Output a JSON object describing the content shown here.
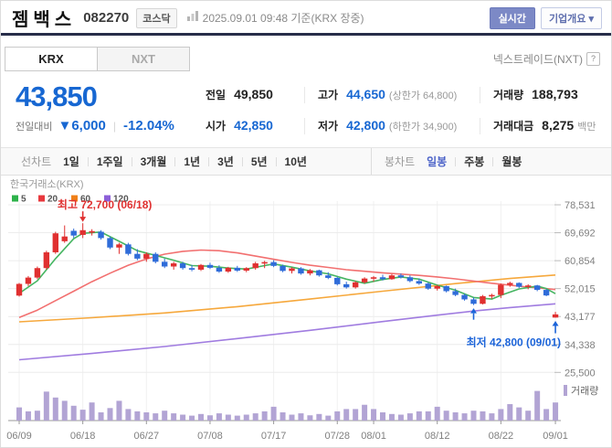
{
  "header": {
    "title": "젬백스",
    "code": "082270",
    "market_badge": "코스닥",
    "datetime": "2025.09.01 09:48 기준(KRX 장중)",
    "realtime_button": "실시간",
    "overview_button": "기업개요 ▾"
  },
  "tabs": {
    "krx": "KRX",
    "nxt": "NXT",
    "nxt_link": "넥스트레이드(NXT)",
    "help_icon": "?"
  },
  "quote": {
    "price": "43,850",
    "change_label": "전일대비",
    "change_value": "▼6,000",
    "change_percent": "-12.04%",
    "fields": [
      {
        "label": "전일",
        "value": "49,850",
        "extra": ""
      },
      {
        "label": "고가",
        "value": "44,650",
        "extra": "(상한가 64,800)"
      },
      {
        "label": "거래량",
        "value": "188,793",
        "extra": ""
      },
      {
        "label": "시가",
        "value": "42,850",
        "extra": ""
      },
      {
        "label": "저가",
        "value": "42,800",
        "extra": "(하한가 34,900)"
      },
      {
        "label": "거래대금",
        "value": "8,275",
        "extra": "백만"
      }
    ]
  },
  "controls": {
    "line_label": "선차트",
    "line_items": [
      "1일",
      "1주일",
      "3개월",
      "1년",
      "3년",
      "5년",
      "10년"
    ],
    "candle_label": "봉차트",
    "candle_items": [
      "일봉",
      "주봉",
      "월봉"
    ],
    "candle_selected": "일봉"
  },
  "chart_data": {
    "type": "candlestick",
    "source_label": "한국거래소(KRX)",
    "volume_label": "거래량",
    "legend": [
      {
        "label": "5",
        "swatch": "#2db24a",
        "line": "#45b561"
      },
      {
        "label": "20",
        "swatch": "#e8383d",
        "line": "#f27070"
      },
      {
        "label": "60",
        "swatch": "#f08018",
        "line": "#f6a83c"
      },
      {
        "label": "120",
        "swatch": "#8c5fd8",
        "line": "#a07ce0"
      }
    ],
    "colors": {
      "up": "#e03030",
      "down": "#2f6cd9",
      "volume": "#b2a4d4",
      "grid": "#ececec",
      "vgrid": "#f0f0f0",
      "axis_text": "#7f7f7f"
    },
    "y_ticks": [
      78531,
      69692,
      60854,
      52015,
      43177,
      34338,
      25500
    ],
    "x_ticks": [
      {
        "label": "06/09",
        "index": 0
      },
      {
        "label": "06/18",
        "index": 7
      },
      {
        "label": "06/27",
        "index": 14
      },
      {
        "label": "07/08",
        "index": 21
      },
      {
        "label": "07/17",
        "index": 28
      },
      {
        "label": "07/28",
        "index": 35
      },
      {
        "label": "08/01",
        "index": 39
      },
      {
        "label": "08/12",
        "index": 46
      },
      {
        "label": "08/22",
        "index": 53
      },
      {
        "label": "09/01",
        "index": 59
      }
    ],
    "annotations": {
      "high": {
        "text": "최고 72,700 (06/18)",
        "index": 7,
        "price": 72700,
        "color": "#e03131"
      },
      "low": {
        "text": "최저 42,800 (09/01)",
        "index": 59,
        "price": 42800,
        "color": "#1c64d9"
      },
      "extra_up_arrow": {
        "index": 50,
        "price": 46800,
        "color": "#1c64d9"
      }
    },
    "candles": [
      [
        49800,
        53800,
        49500,
        53500
      ],
      [
        53500,
        56000,
        52800,
        55500
      ],
      [
        55500,
        59000,
        55000,
        58500
      ],
      [
        58500,
        64000,
        58000,
        63500
      ],
      [
        63500,
        70000,
        63000,
        69500
      ],
      [
        67000,
        72000,
        66500,
        68500
      ],
      [
        70300,
        71000,
        68000,
        68800
      ],
      [
        69000,
        72700,
        68000,
        70500
      ],
      [
        69800,
        70800,
        68800,
        70200
      ],
      [
        70000,
        70500,
        67500,
        68000
      ],
      [
        68000,
        68500,
        64500,
        65000
      ],
      [
        65000,
        66500,
        63000,
        66000
      ],
      [
        66000,
        66500,
        62500,
        63000
      ],
      [
        63000,
        64500,
        61000,
        61500
      ],
      [
        61500,
        63500,
        60500,
        63000
      ],
      [
        63000,
        63500,
        60000,
        60500
      ],
      [
        60500,
        61500,
        58500,
        59000
      ],
      [
        59000,
        60500,
        58000,
        60000
      ],
      [
        60000,
        60500,
        58000,
        58500
      ],
      [
        58500,
        59500,
        57500,
        58000
      ],
      [
        58000,
        59800,
        57600,
        59500
      ],
      [
        59500,
        60200,
        58200,
        58600
      ],
      [
        58600,
        59400,
        57000,
        57400
      ],
      [
        57400,
        58900,
        57000,
        58600
      ],
      [
        58600,
        59200,
        57300,
        57700
      ],
      [
        57700,
        58800,
        57200,
        58500
      ],
      [
        58500,
        60500,
        58000,
        60000
      ],
      [
        60000,
        60800,
        58500,
        60400
      ],
      [
        60400,
        61000,
        58800,
        59200
      ],
      [
        59200,
        59600,
        57200,
        57600
      ],
      [
        57600,
        58800,
        56800,
        58400
      ],
      [
        58400,
        58800,
        56400,
        56800
      ],
      [
        56800,
        58200,
        56200,
        57800
      ],
      [
        57800,
        58000,
        55800,
        56200
      ],
      [
        56200,
        57200,
        55000,
        55400
      ],
      [
        55400,
        55800,
        53000,
        53400
      ],
      [
        53400,
        54200,
        52000,
        52400
      ],
      [
        52400,
        54400,
        52000,
        54000
      ],
      [
        54000,
        55600,
        53600,
        55200
      ],
      [
        55200,
        56000,
        54200,
        55600
      ],
      [
        55600,
        56400,
        54600,
        55000
      ],
      [
        55000,
        56600,
        54800,
        56200
      ],
      [
        56200,
        56800,
        55200,
        55600
      ],
      [
        55600,
        56200,
        54000,
        54400
      ],
      [
        54400,
        55200,
        53200,
        53600
      ],
      [
        53600,
        54000,
        51600,
        52000
      ],
      [
        52000,
        53200,
        51400,
        52800
      ],
      [
        52800,
        53000,
        50800,
        51200
      ],
      [
        51200,
        52000,
        49600,
        50000
      ],
      [
        50000,
        50400,
        48200,
        48600
      ],
      [
        48600,
        49200,
        46800,
        47200
      ],
      [
        47200,
        50000,
        47000,
        49600
      ],
      [
        49600,
        50400,
        48800,
        50000
      ],
      [
        50000,
        53600,
        49000,
        53200
      ],
      [
        53200,
        54200,
        52600,
        53800
      ],
      [
        53800,
        54000,
        52200,
        52600
      ],
      [
        52600,
        53400,
        51800,
        53000
      ],
      [
        53000,
        53200,
        51200,
        51600
      ],
      [
        51600,
        51900,
        49600,
        49850
      ],
      [
        42850,
        44650,
        42800,
        43850
      ]
    ],
    "volumes": [
      40,
      28,
      30,
      88,
      70,
      60,
      45,
      33,
      55,
      25,
      38,
      60,
      35,
      28,
      25,
      22,
      30,
      22,
      18,
      15,
      20,
      16,
      22,
      18,
      15,
      18,
      22,
      28,
      42,
      25,
      18,
      22,
      16,
      20,
      15,
      28,
      35,
      35,
      48,
      35,
      25,
      20,
      18,
      22,
      28,
      28,
      42,
      30,
      25,
      22,
      30,
      28,
      22,
      35,
      50,
      40,
      30,
      90,
      35,
      55
    ],
    "ma": [
      {
        "name": "120",
        "line": "#a07ce0",
        "points": [
          [
            0,
            29500
          ],
          [
            8,
            31500
          ],
          [
            16,
            33700
          ],
          [
            24,
            36200
          ],
          [
            32,
            38800
          ],
          [
            40,
            41600
          ],
          [
            46,
            43600
          ],
          [
            50,
            44900
          ],
          [
            54,
            46000
          ],
          [
            59,
            47200
          ]
        ]
      },
      {
        "name": "60",
        "line": "#f6a83c",
        "points": [
          [
            0,
            41500
          ],
          [
            8,
            42800
          ],
          [
            16,
            44300
          ],
          [
            24,
            46300
          ],
          [
            32,
            48700
          ],
          [
            40,
            51200
          ],
          [
            48,
            53600
          ],
          [
            54,
            55200
          ],
          [
            59,
            56300
          ]
        ]
      },
      {
        "name": "20",
        "line": "#f27070",
        "points": [
          [
            0,
            42900
          ],
          [
            2,
            45200
          ],
          [
            4,
            48200
          ],
          [
            6,
            51200
          ],
          [
            8,
            54200
          ],
          [
            10,
            56900
          ],
          [
            12,
            59400
          ],
          [
            14,
            61400
          ],
          [
            16,
            62900
          ],
          [
            18,
            63800
          ],
          [
            20,
            64200
          ],
          [
            22,
            64000
          ],
          [
            24,
            63300
          ],
          [
            26,
            62300
          ],
          [
            28,
            61300
          ],
          [
            30,
            60300
          ],
          [
            32,
            59400
          ],
          [
            34,
            58700
          ],
          [
            36,
            58000
          ],
          [
            38,
            57500
          ],
          [
            40,
            57000
          ],
          [
            42,
            56600
          ],
          [
            44,
            56200
          ],
          [
            46,
            55700
          ],
          [
            48,
            55100
          ],
          [
            50,
            54400
          ],
          [
            52,
            53700
          ],
          [
            54,
            53100
          ],
          [
            56,
            52500
          ],
          [
            58,
            52000
          ],
          [
            59,
            51700
          ]
        ]
      },
      {
        "name": "5",
        "line": "#45b561",
        "points": [
          [
            0,
            50500
          ],
          [
            2,
            54500
          ],
          [
            4,
            61500
          ],
          [
            6,
            67800
          ],
          [
            7,
            69500
          ],
          [
            9,
            69900
          ],
          [
            11,
            67000
          ],
          [
            13,
            64000
          ],
          [
            15,
            62500
          ],
          [
            17,
            61000
          ],
          [
            19,
            59300
          ],
          [
            21,
            59100
          ],
          [
            23,
            58500
          ],
          [
            25,
            58200
          ],
          [
            27,
            59300
          ],
          [
            28,
            59800
          ],
          [
            30,
            58800
          ],
          [
            32,
            57600
          ],
          [
            34,
            56700
          ],
          [
            36,
            55000
          ],
          [
            38,
            53700
          ],
          [
            40,
            54900
          ],
          [
            42,
            55700
          ],
          [
            44,
            55000
          ],
          [
            46,
            53100
          ],
          [
            48,
            51500
          ],
          [
            50,
            49200
          ],
          [
            52,
            48700
          ],
          [
            53,
            49900
          ],
          [
            55,
            51900
          ],
          [
            57,
            52800
          ],
          [
            58,
            52000
          ],
          [
            59,
            50400
          ]
        ]
      }
    ]
  }
}
